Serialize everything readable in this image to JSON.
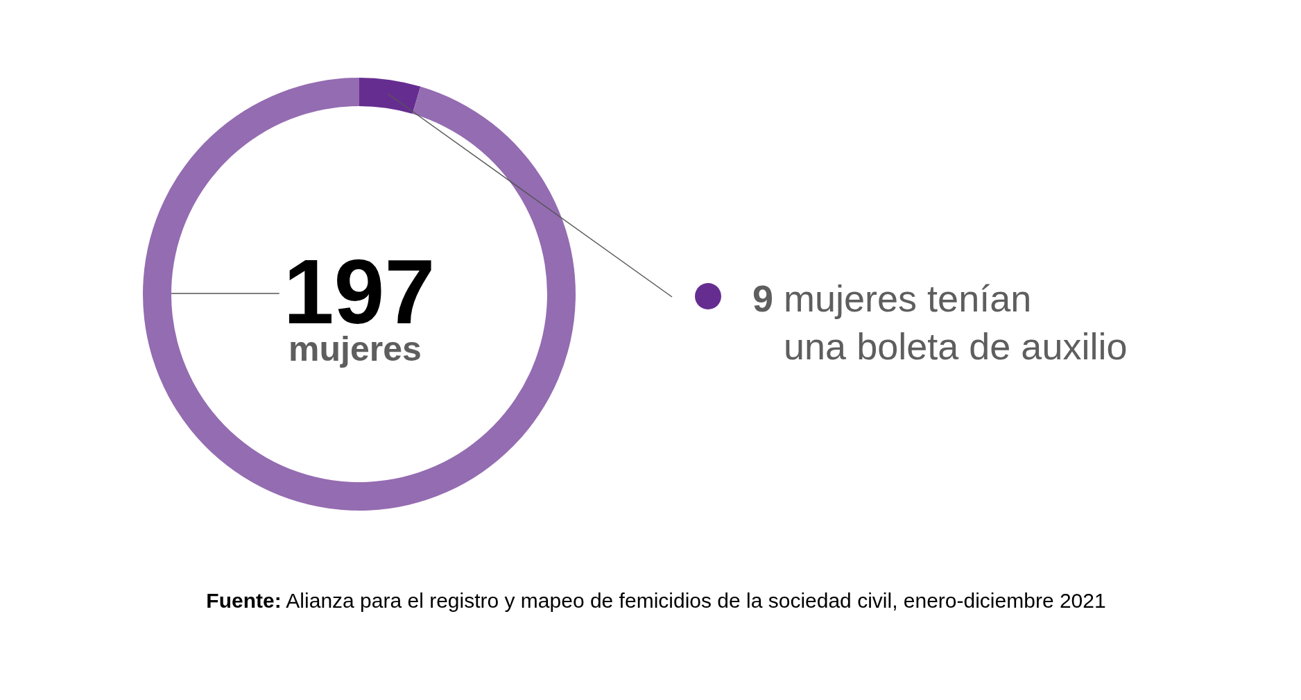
{
  "chart_data": {
    "type": "donut",
    "title": "197",
    "subtitle": "mujeres",
    "categories": [
      "mujeres tenían una boleta de auxilio",
      null
    ],
    "values": [
      9,
      188
    ],
    "value_labels": [
      "9",
      null
    ],
    "colors": [
      "#662d91",
      "#946cb1"
    ],
    "annotations": [
      "Fuente: Alianza para el registro y mapeo de femicidios de la sociedad civil, enero-diciembre 2021"
    ]
  }
}
